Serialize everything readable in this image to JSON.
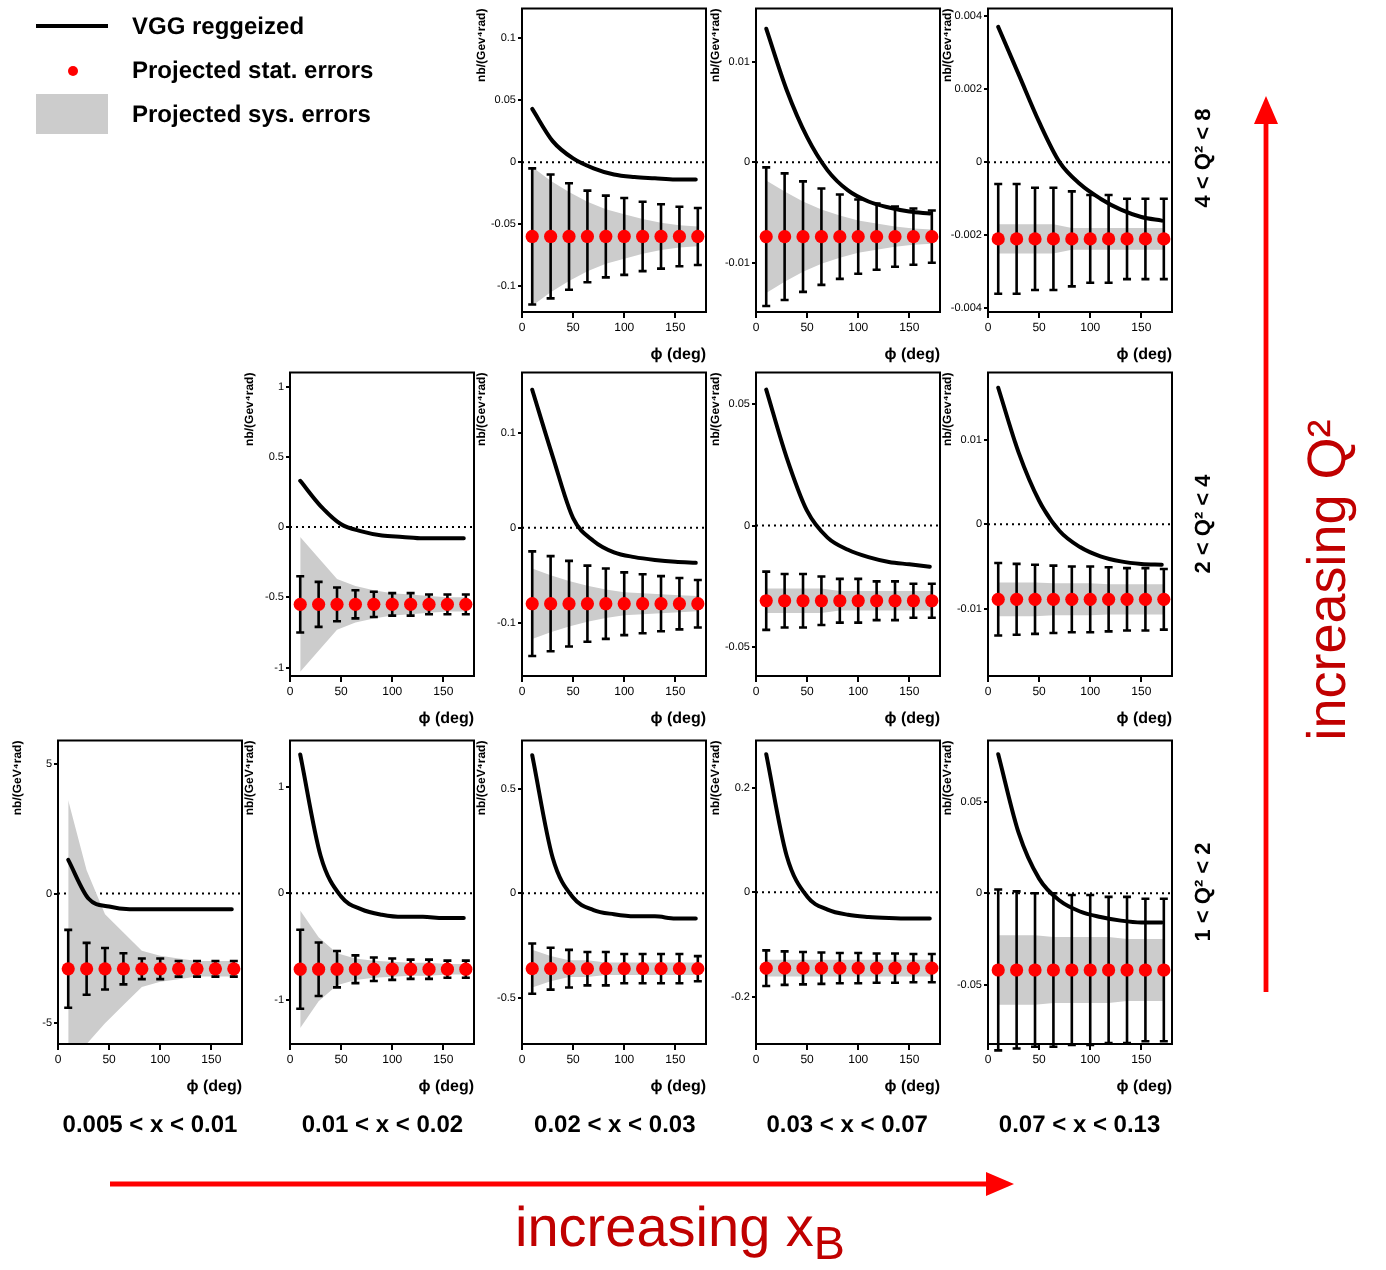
{
  "chart_data": [
    {
      "type": "scatter",
      "ylabel": "nb/(Gev⁴rad)",
      "xlabel": "ϕ (deg)",
      "legend": "left",
      "xlim": [
        0,
        180
      ],
      "xticks": [
        0,
        50,
        100,
        150
      ],
      "ylim": [
        -0.121,
        0.124
      ],
      "yticks": [
        -0.1,
        -0.05,
        0,
        0.05,
        0.1
      ],
      "ref_lines": [
        {
          "axis": "y",
          "value": 0,
          "line_style": "dotted"
        }
      ],
      "series": [
        {
          "type": "line",
          "name": "VGG reggeized",
          "color": "#000000",
          "marker": "none",
          "x": [
            10,
            30,
            50,
            70,
            90,
            110,
            130,
            150,
            170
          ],
          "values": [
            0.043,
            0.017,
            0.003,
            -0.005,
            -0.01,
            -0.012,
            -0.013,
            -0.014,
            -0.014
          ]
        },
        {
          "type": "scatter",
          "name": "Projected stat. errors",
          "color": "#ff0000",
          "marker": "circle",
          "x": [
            10,
            28,
            46,
            64,
            82,
            100,
            118,
            136,
            154,
            172
          ],
          "values": [
            -0.06,
            -0.06,
            -0.06,
            -0.06,
            -0.06,
            -0.06,
            -0.06,
            -0.06,
            -0.06,
            -0.06
          ],
          "errors": [
            0.055,
            0.05,
            0.043,
            0.037,
            0.033,
            0.031,
            0.028,
            0.026,
            0.024,
            0.023
          ]
        },
        {
          "type": "line",
          "name": "Projected sys. errors",
          "color": "#cccccc",
          "x": [
            10,
            28,
            46,
            64,
            82,
            100,
            118,
            136,
            154,
            172
          ],
          "values": [
            null,
            null,
            null,
            null,
            null,
            null,
            null,
            null,
            null,
            null
          ],
          "upper": [
            -0.004,
            -0.015,
            -0.024,
            -0.032,
            -0.038,
            -0.042,
            -0.046,
            -0.049,
            -0.051,
            -0.052
          ],
          "lower": [
            -0.116,
            -0.105,
            -0.096,
            -0.088,
            -0.082,
            -0.078,
            -0.074,
            -0.071,
            -0.069,
            -0.068
          ]
        }
      ]
    },
    {
      "type": "scatter",
      "ylabel": "nb/(Gev⁴rad)",
      "xlabel": "ϕ (deg)",
      "xlim": [
        0,
        180
      ],
      "xticks": [
        0,
        50,
        100,
        150
      ],
      "ylim": [
        -0.0149,
        0.0153
      ],
      "yticks": [
        -0.01,
        0,
        0.01
      ],
      "ref_lines": [
        {
          "axis": "y",
          "value": 0,
          "line_style": "dotted"
        }
      ],
      "series": [
        {
          "type": "line",
          "color": "#000000",
          "marker": "none",
          "x": [
            10,
            30,
            50,
            70,
            90,
            110,
            130,
            150,
            170
          ],
          "values": [
            0.0133,
            0.0072,
            0.0025,
            -0.0008,
            -0.0028,
            -0.0039,
            -0.0045,
            -0.0049,
            -0.0051
          ]
        },
        {
          "type": "scatter",
          "color": "#ff0000",
          "marker": "circle",
          "x": [
            10,
            28,
            46,
            64,
            82,
            100,
            118,
            136,
            154,
            172
          ],
          "values": [
            -0.0074,
            -0.0074,
            -0.0074,
            -0.0074,
            -0.0074,
            -0.0074,
            -0.0074,
            -0.0074,
            -0.0074,
            -0.0074
          ],
          "errors": [
            0.0069,
            0.0063,
            0.0055,
            0.0048,
            0.0042,
            0.0037,
            0.0033,
            0.003,
            0.0028,
            0.0026
          ]
        },
        {
          "type": "line",
          "color": "#cccccc",
          "x": [
            10,
            28,
            46,
            64,
            82,
            100,
            118,
            136,
            154,
            172
          ],
          "values": [
            null,
            null,
            null,
            null,
            null,
            null,
            null,
            null,
            null,
            null
          ],
          "upper": [
            -0.0018,
            -0.0029,
            -0.0039,
            -0.0047,
            -0.0053,
            -0.0058,
            -0.0061,
            -0.0064,
            -0.0066,
            -0.0067
          ],
          "lower": [
            -0.013,
            -0.0119,
            -0.0109,
            -0.0101,
            -0.0095,
            -0.009,
            -0.0087,
            -0.0084,
            -0.0082,
            -0.0081
          ]
        }
      ]
    },
    {
      "type": "scatter",
      "ylabel": "nb/(Gev⁴rad)",
      "xlabel": "ϕ (deg)",
      "xlim": [
        0,
        180
      ],
      "xticks": [
        0,
        50,
        100,
        150
      ],
      "ylim": [
        -0.0041,
        0.0042
      ],
      "yticks": [
        -0.004,
        -0.002,
        0,
        0.002,
        0.004
      ],
      "ref_lines": [
        {
          "axis": "y",
          "value": 0,
          "line_style": "dotted"
        }
      ],
      "series": [
        {
          "type": "line",
          "color": "#000000",
          "marker": "none",
          "x": [
            10,
            30,
            50,
            70,
            90,
            110,
            130,
            150,
            170
          ],
          "values": [
            0.0037,
            0.0024,
            0.0011,
            0,
            -0.0006,
            -0.001,
            -0.0013,
            -0.0015,
            -0.0016
          ]
        },
        {
          "type": "scatter",
          "color": "#ff0000",
          "marker": "circle",
          "x": [
            10,
            28,
            46,
            64,
            82,
            100,
            118,
            136,
            154,
            172
          ],
          "values": [
            -0.0021,
            -0.0021,
            -0.0021,
            -0.0021,
            -0.0021,
            -0.0021,
            -0.0021,
            -0.0021,
            -0.0021,
            -0.0021
          ],
          "errors": [
            0.0015,
            0.0015,
            0.0014,
            0.0014,
            0.0013,
            0.0012,
            0.0012,
            0.0011,
            0.0011,
            0.0011
          ]
        },
        {
          "type": "line",
          "color": "#cccccc",
          "x": [
            10,
            28,
            46,
            64,
            82,
            100,
            118,
            136,
            154,
            172
          ],
          "values": [
            null,
            null,
            null,
            null,
            null,
            null,
            null,
            null,
            null,
            null
          ],
          "upper": [
            -0.0017,
            -0.0017,
            -0.0017,
            -0.0017,
            -0.0018,
            -0.0018,
            -0.0018,
            -0.0018,
            -0.0018,
            -0.0018
          ],
          "lower": [
            -0.0025,
            -0.0025,
            -0.0025,
            -0.0025,
            -0.0024,
            -0.0024,
            -0.0024,
            -0.0024,
            -0.0024,
            -0.0024
          ]
        }
      ]
    },
    {
      "type": "scatter",
      "ylabel": "nb/(Gev⁴rad)",
      "xlabel": "ϕ (deg)",
      "xlim": [
        0,
        180
      ],
      "xticks": [
        0,
        50,
        100,
        150
      ],
      "ylim": [
        -1.06,
        1.1
      ],
      "yticks": [
        -1,
        -0.5,
        0,
        0.5,
        1
      ],
      "ref_lines": [
        {
          "axis": "y",
          "value": 0,
          "line_style": "dotted"
        }
      ],
      "series": [
        {
          "type": "line",
          "color": "#000000",
          "marker": "none",
          "x": [
            10,
            30,
            50,
            70,
            90,
            110,
            130,
            150,
            170
          ],
          "values": [
            0.33,
            0.15,
            0.02,
            -0.03,
            -0.06,
            -0.07,
            -0.08,
            -0.08,
            -0.08
          ]
        },
        {
          "type": "scatter",
          "color": "#ff0000",
          "marker": "circle",
          "x": [
            10,
            28,
            46,
            64,
            82,
            100,
            118,
            136,
            154,
            172
          ],
          "values": [
            -0.55,
            -0.55,
            -0.55,
            -0.55,
            -0.55,
            -0.55,
            -0.55,
            -0.55,
            -0.55,
            -0.55
          ],
          "errors": [
            0.2,
            0.16,
            0.12,
            0.1,
            0.09,
            0.08,
            0.08,
            0.07,
            0.07,
            0.07
          ]
        },
        {
          "type": "line",
          "color": "#cccccc",
          "x": [
            10,
            28,
            46,
            64,
            82,
            100,
            118,
            136,
            154,
            172
          ],
          "values": [
            null,
            null,
            null,
            null,
            null,
            null,
            null,
            null,
            null,
            null
          ],
          "upper": [
            -0.07,
            -0.22,
            -0.37,
            -0.42,
            -0.45,
            -0.47,
            -0.48,
            -0.49,
            -0.5,
            -0.5
          ],
          "lower": [
            -1.03,
            -0.88,
            -0.73,
            -0.68,
            -0.65,
            -0.63,
            -0.62,
            -0.61,
            -0.6,
            -0.6
          ]
        }
      ]
    },
    {
      "type": "scatter",
      "ylabel": "nb/(Gev⁴rad)",
      "xlabel": "ϕ (deg)",
      "xlim": [
        0,
        180
      ],
      "xticks": [
        0,
        50,
        100,
        150
      ],
      "ylim": [
        -0.156,
        0.163
      ],
      "yticks": [
        -0.1,
        0,
        0.1
      ],
      "ref_lines": [
        {
          "axis": "y",
          "value": 0,
          "line_style": "dotted"
        }
      ],
      "series": [
        {
          "type": "line",
          "color": "#000000",
          "marker": "none",
          "x": [
            10,
            30,
            50,
            70,
            90,
            110,
            130,
            150,
            170
          ],
          "values": [
            0.145,
            0.075,
            0.01,
            -0.014,
            -0.026,
            -0.031,
            -0.034,
            -0.036,
            -0.037
          ]
        },
        {
          "type": "scatter",
          "color": "#ff0000",
          "marker": "circle",
          "x": [
            10,
            28,
            46,
            64,
            82,
            100,
            118,
            136,
            154,
            172
          ],
          "values": [
            -0.08,
            -0.08,
            -0.08,
            -0.08,
            -0.08,
            -0.08,
            -0.08,
            -0.08,
            -0.08,
            -0.08
          ],
          "errors": [
            0.055,
            0.05,
            0.045,
            0.04,
            0.037,
            0.033,
            0.031,
            0.029,
            0.027,
            0.025
          ]
        },
        {
          "type": "line",
          "color": "#cccccc",
          "x": [
            10,
            28,
            46,
            64,
            82,
            100,
            118,
            136,
            154,
            172
          ],
          "values": [
            null,
            null,
            null,
            null,
            null,
            null,
            null,
            null,
            null,
            null
          ],
          "upper": [
            -0.043,
            -0.05,
            -0.056,
            -0.061,
            -0.065,
            -0.068,
            -0.069,
            -0.07,
            -0.071,
            -0.072
          ],
          "lower": [
            -0.117,
            -0.11,
            -0.104,
            -0.099,
            -0.095,
            -0.092,
            -0.091,
            -0.09,
            -0.089,
            -0.088
          ]
        }
      ]
    },
    {
      "type": "scatter",
      "ylabel": "nb/(Gev⁴rad)",
      "xlabel": "ϕ (deg)",
      "xlim": [
        0,
        180
      ],
      "xticks": [
        0,
        50,
        100,
        150
      ],
      "ylim": [
        -0.062,
        0.063
      ],
      "yticks": [
        -0.05,
        0,
        0.05
      ],
      "ref_lines": [
        {
          "axis": "y",
          "value": 0,
          "line_style": "dotted"
        }
      ],
      "series": [
        {
          "type": "line",
          "color": "#000000",
          "marker": "none",
          "x": [
            10,
            30,
            50,
            70,
            90,
            110,
            130,
            150,
            170
          ],
          "values": [
            0.056,
            0.028,
            0.006,
            -0.005,
            -0.01,
            -0.013,
            -0.015,
            -0.016,
            -0.017
          ]
        },
        {
          "type": "scatter",
          "color": "#ff0000",
          "marker": "circle",
          "x": [
            10,
            28,
            46,
            64,
            82,
            100,
            118,
            136,
            154,
            172
          ],
          "values": [
            -0.031,
            -0.031,
            -0.031,
            -0.031,
            -0.031,
            -0.031,
            -0.031,
            -0.031,
            -0.031,
            -0.031
          ],
          "errors": [
            0.012,
            0.011,
            0.011,
            0.01,
            0.009,
            0.009,
            0.008,
            0.008,
            0.007,
            0.007
          ]
        },
        {
          "type": "line",
          "color": "#cccccc",
          "x": [
            10,
            28,
            46,
            64,
            82,
            100,
            118,
            136,
            154,
            172
          ],
          "values": [
            null,
            null,
            null,
            null,
            null,
            null,
            null,
            null,
            null,
            null
          ],
          "upper": [
            -0.026,
            -0.026,
            -0.026,
            -0.026,
            -0.027,
            -0.027,
            -0.027,
            -0.027,
            -0.027,
            -0.027
          ],
          "lower": [
            -0.036,
            -0.036,
            -0.036,
            -0.036,
            -0.035,
            -0.035,
            -0.035,
            -0.035,
            -0.035,
            -0.035
          ]
        }
      ]
    },
    {
      "type": "scatter",
      "ylabel": "nb/(Gev⁴rad)",
      "xlabel": "ϕ (deg)",
      "xlim": [
        0,
        180
      ],
      "xticks": [
        0,
        50,
        100,
        150
      ],
      "ylim": [
        -0.018,
        0.018
      ],
      "yticks": [
        -0.01,
        0,
        0.01
      ],
      "ref_lines": [
        {
          "axis": "y",
          "value": 0,
          "line_style": "dotted"
        }
      ],
      "series": [
        {
          "type": "line",
          "color": "#000000",
          "marker": "none",
          "x": [
            10,
            30,
            50,
            70,
            90,
            110,
            130,
            150,
            170
          ],
          "values": [
            0.0162,
            0.0085,
            0.0028,
            -0.0008,
            -0.0027,
            -0.0038,
            -0.0044,
            -0.0047,
            -0.0048
          ]
        },
        {
          "type": "scatter",
          "color": "#ff0000",
          "marker": "circle",
          "x": [
            10,
            28,
            46,
            64,
            82,
            100,
            118,
            136,
            154,
            172
          ],
          "values": [
            -0.0089,
            -0.0089,
            -0.0089,
            -0.0089,
            -0.0089,
            -0.0089,
            -0.0089,
            -0.0089,
            -0.0089,
            -0.0089
          ],
          "errors": [
            0.0043,
            0.0042,
            0.0041,
            0.004,
            0.0039,
            0.0039,
            0.0038,
            0.0037,
            0.0037,
            0.0036
          ]
        },
        {
          "type": "line",
          "color": "#cccccc",
          "x": [
            10,
            28,
            46,
            64,
            82,
            100,
            118,
            136,
            154,
            172
          ],
          "values": [
            null,
            null,
            null,
            null,
            null,
            null,
            null,
            null,
            null,
            null
          ],
          "upper": [
            -0.0069,
            -0.0069,
            -0.0069,
            -0.007,
            -0.007,
            -0.007,
            -0.0071,
            -0.0071,
            -0.0071,
            -0.0071
          ],
          "lower": [
            -0.0109,
            -0.0109,
            -0.0109,
            -0.0108,
            -0.0108,
            -0.0108,
            -0.0107,
            -0.0107,
            -0.0107,
            -0.0107
          ]
        }
      ]
    },
    {
      "type": "scatter",
      "ylabel": "nb/(GeV⁴rad)",
      "xlabel": "ϕ (deg)",
      "xlim": [
        0,
        180
      ],
      "xticks": [
        0,
        50,
        100,
        150
      ],
      "ylim": [
        -5.8,
        5.9
      ],
      "yticks": [
        -5,
        0,
        5
      ],
      "ref_lines": [
        {
          "axis": "y",
          "value": 0,
          "line_style": "dotted"
        }
      ],
      "series": [
        {
          "type": "line",
          "color": "#000000",
          "marker": "none",
          "x": [
            10,
            30,
            50,
            70,
            90,
            110,
            130,
            150,
            170
          ],
          "values": [
            1.3,
            -0.2,
            -0.5,
            -0.6,
            -0.6,
            -0.6,
            -0.6,
            -0.6,
            -0.6
          ]
        },
        {
          "type": "scatter",
          "color": "#ff0000",
          "marker": "circle",
          "x": [
            10,
            28,
            46,
            64,
            82,
            100,
            118,
            136,
            154,
            172
          ],
          "values": [
            -2.9,
            -2.9,
            -2.9,
            -2.9,
            -2.9,
            -2.9,
            -2.9,
            -2.9,
            -2.9,
            -2.9
          ],
          "errors": [
            1.5,
            1.0,
            0.8,
            0.6,
            0.4,
            0.4,
            0.3,
            0.3,
            0.3,
            0.3
          ]
        },
        {
          "type": "line",
          "color": "#cccccc",
          "x": [
            10,
            28,
            46,
            64,
            82,
            100,
            118,
            136,
            154,
            172
          ],
          "values": [
            null,
            null,
            null,
            null,
            null,
            null,
            null,
            null,
            null,
            null
          ],
          "upper": [
            3.6,
            0.9,
            -0.8,
            -1.5,
            -2.2,
            -2.4,
            -2.5,
            -2.6,
            -2.6,
            -2.6
          ],
          "lower": [
            -5.8,
            -5.8,
            -5.0,
            -4.3,
            -3.6,
            -3.4,
            -3.3,
            -3.2,
            -3.2,
            -3.2
          ]
        }
      ]
    },
    {
      "type": "scatter",
      "ylabel": "nb/(GeV⁴rad)",
      "xlabel": "ϕ (deg)",
      "xlim": [
        0,
        180
      ],
      "xticks": [
        0,
        50,
        100,
        150
      ],
      "ylim": [
        -1.41,
        1.43
      ],
      "yticks": [
        -1,
        0,
        1
      ],
      "ref_lines": [
        {
          "axis": "y",
          "value": 0,
          "line_style": "dotted"
        }
      ],
      "series": [
        {
          "type": "line",
          "color": "#000000",
          "marker": "none",
          "x": [
            10,
            30,
            50,
            70,
            90,
            110,
            130,
            150,
            170
          ],
          "values": [
            1.3,
            0.35,
            -0.03,
            -0.15,
            -0.2,
            -0.22,
            -0.22,
            -0.23,
            -0.23
          ]
        },
        {
          "type": "scatter",
          "color": "#ff0000",
          "marker": "circle",
          "x": [
            10,
            28,
            46,
            64,
            82,
            100,
            118,
            136,
            154,
            172
          ],
          "values": [
            -0.71,
            -0.71,
            -0.71,
            -0.71,
            -0.71,
            -0.71,
            -0.71,
            -0.71,
            -0.71,
            -0.71
          ],
          "errors": [
            0.37,
            0.25,
            0.17,
            0.13,
            0.11,
            0.1,
            0.09,
            0.09,
            0.08,
            0.08
          ]
        },
        {
          "type": "line",
          "color": "#cccccc",
          "x": [
            10,
            28,
            46,
            64,
            82,
            100,
            118,
            136,
            154,
            172
          ],
          "values": [
            null,
            null,
            null,
            null,
            null,
            null,
            null,
            null,
            null,
            null
          ],
          "upper": [
            -0.16,
            -0.41,
            -0.56,
            -0.61,
            -0.63,
            -0.64,
            -0.65,
            -0.65,
            -0.66,
            -0.66
          ],
          "lower": [
            -1.26,
            -1.01,
            -0.86,
            -0.81,
            -0.79,
            -0.78,
            -0.77,
            -0.77,
            -0.76,
            -0.76
          ]
        }
      ]
    },
    {
      "type": "scatter",
      "ylabel": "nb/(GeV⁴rad)",
      "xlabel": "ϕ (deg)",
      "xlim": [
        0,
        180
      ],
      "xticks": [
        0,
        50,
        100,
        150
      ],
      "ylim": [
        -0.72,
        0.73
      ],
      "yticks": [
        -0.5,
        0,
        0.5
      ],
      "ref_lines": [
        {
          "axis": "y",
          "value": 0,
          "line_style": "dotted"
        }
      ],
      "series": [
        {
          "type": "line",
          "color": "#000000",
          "marker": "none",
          "x": [
            10,
            30,
            50,
            70,
            90,
            110,
            130,
            150,
            170
          ],
          "values": [
            0.66,
            0.17,
            -0.02,
            -0.08,
            -0.1,
            -0.11,
            -0.11,
            -0.12,
            -0.12
          ]
        },
        {
          "type": "scatter",
          "color": "#ff0000",
          "marker": "circle",
          "x": [
            10,
            28,
            46,
            64,
            82,
            100,
            118,
            136,
            154,
            172
          ],
          "values": [
            -0.36,
            -0.36,
            -0.36,
            -0.36,
            -0.36,
            -0.36,
            -0.36,
            -0.36,
            -0.36,
            -0.36
          ],
          "errors": [
            0.12,
            0.1,
            0.09,
            0.08,
            0.08,
            0.07,
            0.07,
            0.07,
            0.07,
            0.06
          ]
        },
        {
          "type": "line",
          "color": "#cccccc",
          "x": [
            10,
            28,
            46,
            64,
            82,
            100,
            118,
            136,
            154,
            172
          ],
          "values": [
            null,
            null,
            null,
            null,
            null,
            null,
            null,
            null,
            null,
            null
          ],
          "upper": [
            -0.27,
            -0.3,
            -0.32,
            -0.32,
            -0.33,
            -0.33,
            -0.33,
            -0.33,
            -0.33,
            -0.33
          ],
          "lower": [
            -0.45,
            -0.42,
            -0.4,
            -0.4,
            -0.39,
            -0.39,
            -0.39,
            -0.39,
            -0.39,
            -0.39
          ]
        }
      ]
    },
    {
      "type": "scatter",
      "ylabel": "nb/(GeV⁴rad)",
      "xlabel": "ϕ (deg)",
      "xlim": [
        0,
        180
      ],
      "xticks": [
        0,
        50,
        100,
        150
      ],
      "ylim": [
        -0.29,
        0.29
      ],
      "yticks": [
        -0.2,
        0,
        0.2
      ],
      "ref_lines": [
        {
          "axis": "y",
          "value": 0,
          "line_style": "dotted"
        }
      ],
      "series": [
        {
          "type": "line",
          "color": "#000000",
          "marker": "none",
          "x": [
            10,
            30,
            50,
            70,
            90,
            110,
            130,
            150,
            170
          ],
          "values": [
            0.264,
            0.07,
            -0.008,
            -0.033,
            -0.043,
            -0.047,
            -0.049,
            -0.05,
            -0.05
          ]
        },
        {
          "type": "scatter",
          "color": "#ff0000",
          "marker": "circle",
          "x": [
            10,
            28,
            46,
            64,
            82,
            100,
            118,
            136,
            154,
            172
          ],
          "values": [
            -0.145,
            -0.145,
            -0.145,
            -0.145,
            -0.145,
            -0.145,
            -0.145,
            -0.145,
            -0.145,
            -0.145
          ],
          "errors": [
            0.034,
            0.032,
            0.031,
            0.03,
            0.029,
            0.029,
            0.028,
            0.028,
            0.027,
            0.027
          ]
        },
        {
          "type": "line",
          "color": "#cccccc",
          "x": [
            10,
            28,
            46,
            64,
            82,
            100,
            118,
            136,
            154,
            172
          ],
          "values": [
            null,
            null,
            null,
            null,
            null,
            null,
            null,
            null,
            null,
            null
          ],
          "upper": [
            -0.129,
            -0.129,
            -0.129,
            -0.129,
            -0.129,
            -0.129,
            -0.129,
            -0.129,
            -0.129,
            -0.129
          ],
          "lower": [
            -0.161,
            -0.161,
            -0.161,
            -0.161,
            -0.161,
            -0.161,
            -0.161,
            -0.161,
            -0.161,
            -0.161
          ]
        }
      ]
    },
    {
      "type": "scatter",
      "ylabel": "nb/(GeV⁴rad)",
      "xlabel": "ϕ (deg)",
      "xlim": [
        0,
        180
      ],
      "xticks": [
        0,
        50,
        100,
        150
      ],
      "ylim": [
        -0.0825,
        0.0835
      ],
      "yticks": [
        -0.05,
        0,
        0.05
      ],
      "ref_lines": [
        {
          "axis": "y",
          "value": 0,
          "line_style": "dotted"
        }
      ],
      "series": [
        {
          "type": "line",
          "color": "#000000",
          "marker": "none",
          "x": [
            10,
            30,
            50,
            70,
            90,
            110,
            130,
            150,
            170
          ],
          "values": [
            0.076,
            0.033,
            0.008,
            -0.004,
            -0.01,
            -0.013,
            -0.015,
            -0.016,
            -0.016
          ]
        },
        {
          "type": "scatter",
          "color": "#ff0000",
          "marker": "circle",
          "x": [
            10,
            28,
            46,
            64,
            82,
            100,
            118,
            136,
            154,
            172
          ],
          "values": [
            -0.042,
            -0.042,
            -0.042,
            -0.042,
            -0.042,
            -0.042,
            -0.042,
            -0.042,
            -0.042,
            -0.042
          ],
          "errors": [
            0.044,
            0.043,
            0.042,
            0.042,
            0.041,
            0.041,
            0.04,
            0.04,
            0.039,
            0.039
          ]
        },
        {
          "type": "line",
          "color": "#cccccc",
          "x": [
            10,
            28,
            46,
            64,
            82,
            100,
            118,
            136,
            154,
            172
          ],
          "values": [
            null,
            null,
            null,
            null,
            null,
            null,
            null,
            null,
            null,
            null
          ],
          "upper": [
            -0.023,
            -0.023,
            -0.023,
            -0.024,
            -0.024,
            -0.024,
            -0.024,
            -0.025,
            -0.025,
            -0.025
          ],
          "lower": [
            -0.061,
            -0.061,
            -0.061,
            -0.06,
            -0.06,
            -0.06,
            -0.06,
            -0.059,
            -0.059,
            -0.059
          ]
        }
      ]
    },
    {
      "type": "other",
      "annotations": [
        "4 < Q² < 8",
        "2 < Q² < 4",
        "1 < Q² < 2",
        "0.005 < x < 0.01",
        "0.01 < x < 0.02",
        "0.02 < x < 0.03",
        "0.03 < x < 0.07",
        "0.07 < x < 0.13",
        "increasing Q²",
        "increasing x$_{B}$"
      ]
    }
  ]
}
